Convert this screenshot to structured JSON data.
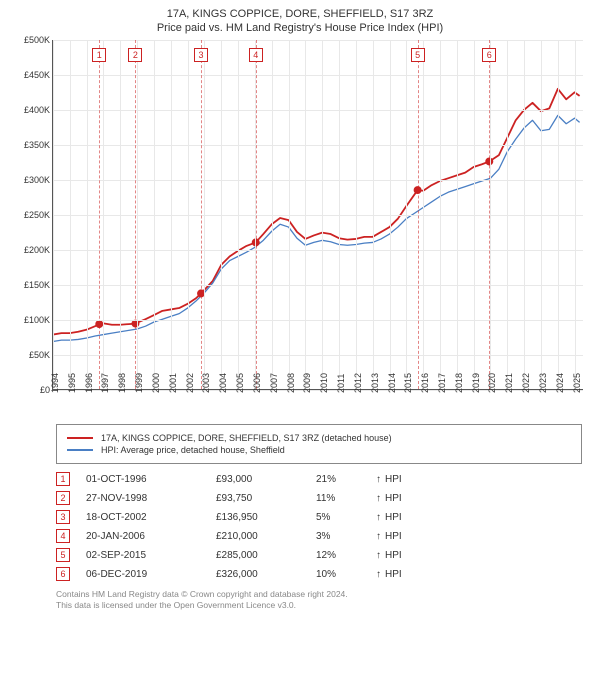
{
  "title": {
    "line1": "17A, KINGS COPPICE, DORE, SHEFFIELD, S17 3RZ",
    "line2": "Price paid vs. HM Land Registry's House Price Index (HPI)"
  },
  "chart": {
    "type": "line",
    "background_color": "#ffffff",
    "grid_color": "#e8e8e8",
    "axis_color": "#555555",
    "x_domain": [
      1994,
      2025.5
    ],
    "y_domain": [
      0,
      500000
    ],
    "ylabel_prefix": "£",
    "ylabel_suffix": "K",
    "yticks": [
      0,
      50000,
      100000,
      150000,
      200000,
      250000,
      300000,
      350000,
      400000,
      450000,
      500000
    ],
    "xticks": [
      1994,
      1995,
      1996,
      1997,
      1998,
      1999,
      2000,
      2001,
      2002,
      2003,
      2004,
      2005,
      2006,
      2007,
      2008,
      2009,
      2010,
      2011,
      2012,
      2013,
      2014,
      2015,
      2016,
      2017,
      2018,
      2019,
      2020,
      2021,
      2022,
      2023,
      2024,
      2025
    ],
    "series": [
      {
        "id": "property",
        "label": "17A, KINGS COPPICE, DORE, SHEFFIELD, S17 3RZ (detached house)",
        "color": "#cc2222",
        "width": 1.8,
        "points": [
          [
            1994.0,
            78000
          ],
          [
            1994.5,
            80000
          ],
          [
            1995.0,
            80000
          ],
          [
            1995.5,
            82000
          ],
          [
            1996.0,
            85000
          ],
          [
            1996.5,
            90000
          ],
          [
            1996.75,
            93000
          ],
          [
            1997.0,
            94000
          ],
          [
            1997.5,
            92000
          ],
          [
            1998.0,
            92000
          ],
          [
            1998.5,
            93000
          ],
          [
            1998.9,
            93750
          ],
          [
            1999.0,
            95000
          ],
          [
            1999.5,
            100000
          ],
          [
            2000.0,
            106000
          ],
          [
            2000.5,
            112000
          ],
          [
            2001.0,
            114000
          ],
          [
            2001.5,
            116000
          ],
          [
            2002.0,
            122000
          ],
          [
            2002.5,
            130000
          ],
          [
            2002.8,
            136950
          ],
          [
            2003.0,
            142000
          ],
          [
            2003.5,
            155000
          ],
          [
            2004.0,
            178000
          ],
          [
            2004.5,
            190000
          ],
          [
            2005.0,
            198000
          ],
          [
            2005.5,
            205000
          ],
          [
            2006.05,
            210000
          ],
          [
            2006.5,
            222000
          ],
          [
            2007.0,
            236000
          ],
          [
            2007.5,
            245000
          ],
          [
            2008.0,
            242000
          ],
          [
            2008.5,
            225000
          ],
          [
            2009.0,
            215000
          ],
          [
            2009.5,
            220000
          ],
          [
            2010.0,
            224000
          ],
          [
            2010.5,
            222000
          ],
          [
            2011.0,
            216000
          ],
          [
            2011.5,
            214000
          ],
          [
            2012.0,
            215000
          ],
          [
            2012.5,
            218000
          ],
          [
            2013.0,
            218000
          ],
          [
            2013.5,
            225000
          ],
          [
            2014.0,
            232000
          ],
          [
            2014.5,
            244000
          ],
          [
            2015.0,
            262000
          ],
          [
            2015.67,
            285000
          ],
          [
            2016.0,
            284000
          ],
          [
            2016.5,
            292000
          ],
          [
            2017.0,
            298000
          ],
          [
            2017.5,
            302000
          ],
          [
            2018.0,
            306000
          ],
          [
            2018.5,
            310000
          ],
          [
            2019.0,
            318000
          ],
          [
            2019.5,
            322000
          ],
          [
            2019.93,
            326000
          ],
          [
            2020.5,
            335000
          ],
          [
            2021.0,
            360000
          ],
          [
            2021.5,
            385000
          ],
          [
            2022.0,
            400000
          ],
          [
            2022.5,
            410000
          ],
          [
            2023.0,
            398000
          ],
          [
            2023.5,
            402000
          ],
          [
            2024.0,
            430000
          ],
          [
            2024.5,
            415000
          ],
          [
            2025.0,
            425000
          ],
          [
            2025.3,
            420000
          ]
        ]
      },
      {
        "id": "hpi",
        "label": "HPI: Average price, detached house, Sheffield",
        "color": "#4a7fc4",
        "width": 1.3,
        "points": [
          [
            1994.0,
            68000
          ],
          [
            1994.5,
            70000
          ],
          [
            1995.0,
            70000
          ],
          [
            1995.5,
            71000
          ],
          [
            1996.0,
            73000
          ],
          [
            1996.5,
            76000
          ],
          [
            1997.0,
            78000
          ],
          [
            1997.5,
            80000
          ],
          [
            1998.0,
            82000
          ],
          [
            1998.5,
            84000
          ],
          [
            1999.0,
            86000
          ],
          [
            1999.5,
            90000
          ],
          [
            2000.0,
            96000
          ],
          [
            2000.5,
            100000
          ],
          [
            2001.0,
            104000
          ],
          [
            2001.5,
            108000
          ],
          [
            2002.0,
            116000
          ],
          [
            2002.5,
            126000
          ],
          [
            2003.0,
            138000
          ],
          [
            2003.5,
            152000
          ],
          [
            2004.0,
            172000
          ],
          [
            2004.5,
            184000
          ],
          [
            2005.0,
            190000
          ],
          [
            2005.5,
            196000
          ],
          [
            2006.0,
            203000
          ],
          [
            2006.5,
            213000
          ],
          [
            2007.0,
            226000
          ],
          [
            2007.5,
            236000
          ],
          [
            2008.0,
            232000
          ],
          [
            2008.5,
            216000
          ],
          [
            2009.0,
            206000
          ],
          [
            2009.5,
            210000
          ],
          [
            2010.0,
            213000
          ],
          [
            2010.5,
            211000
          ],
          [
            2011.0,
            207000
          ],
          [
            2011.5,
            206000
          ],
          [
            2012.0,
            207000
          ],
          [
            2012.5,
            209000
          ],
          [
            2013.0,
            210000
          ],
          [
            2013.5,
            215000
          ],
          [
            2014.0,
            222000
          ],
          [
            2014.5,
            232000
          ],
          [
            2015.0,
            244000
          ],
          [
            2015.5,
            252000
          ],
          [
            2016.0,
            260000
          ],
          [
            2016.5,
            268000
          ],
          [
            2017.0,
            276000
          ],
          [
            2017.5,
            282000
          ],
          [
            2018.0,
            286000
          ],
          [
            2018.5,
            290000
          ],
          [
            2019.0,
            294000
          ],
          [
            2019.5,
            298000
          ],
          [
            2020.0,
            302000
          ],
          [
            2020.5,
            315000
          ],
          [
            2021.0,
            340000
          ],
          [
            2021.5,
            358000
          ],
          [
            2022.0,
            374000
          ],
          [
            2022.5,
            385000
          ],
          [
            2023.0,
            370000
          ],
          [
            2023.5,
            372000
          ],
          [
            2024.0,
            392000
          ],
          [
            2024.5,
            380000
          ],
          [
            2025.0,
            388000
          ],
          [
            2025.3,
            382000
          ]
        ]
      }
    ],
    "event_lines": {
      "color": "#cc2222",
      "dash": "4,3",
      "box_border": "#cc2222",
      "box_text_color": "#cc2222",
      "positions": [
        1996.75,
        1998.9,
        2002.8,
        2006.05,
        2015.67,
        2019.93
      ]
    },
    "markers": {
      "color": "#cc2222",
      "radius": 3.5,
      "points": [
        [
          1996.75,
          93000
        ],
        [
          1998.9,
          93750
        ],
        [
          2002.8,
          136950
        ],
        [
          2006.05,
          210000
        ],
        [
          2015.67,
          285000
        ],
        [
          2019.93,
          326000
        ]
      ]
    },
    "tick_fontsize": 9
  },
  "legend": {
    "border_color": "#888888",
    "items": [
      {
        "color": "#cc2222",
        "label": "17A, KINGS COPPICE, DORE, SHEFFIELD, S17 3RZ (detached house)"
      },
      {
        "color": "#4a7fc4",
        "label": "HPI: Average price, detached house, Sheffield"
      }
    ]
  },
  "transactions": {
    "box_color": "#cc2222",
    "arrow_glyph": "↑",
    "note": "HPI",
    "rows": [
      {
        "n": "1",
        "date": "01-OCT-1996",
        "price": "£93,000",
        "pct": "21%"
      },
      {
        "n": "2",
        "date": "27-NOV-1998",
        "price": "£93,750",
        "pct": "11%"
      },
      {
        "n": "3",
        "date": "18-OCT-2002",
        "price": "£136,950",
        "pct": "5%"
      },
      {
        "n": "4",
        "date": "20-JAN-2006",
        "price": "£210,000",
        "pct": "3%"
      },
      {
        "n": "5",
        "date": "02-SEP-2015",
        "price": "£285,000",
        "pct": "12%"
      },
      {
        "n": "6",
        "date": "06-DEC-2019",
        "price": "£326,000",
        "pct": "10%"
      }
    ]
  },
  "footer": {
    "line1": "Contains HM Land Registry data © Crown copyright and database right 2024.",
    "line2": "This data is licensed under the Open Government Licence v3.0."
  }
}
